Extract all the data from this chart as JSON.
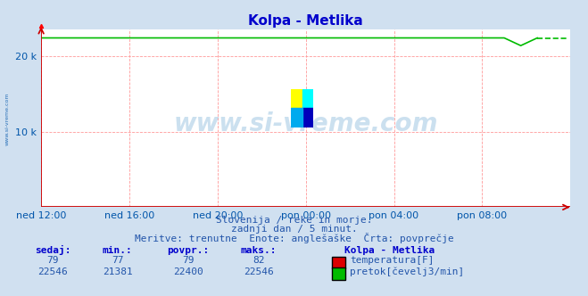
{
  "title": "Kolpa - Metlika",
  "title_color": "#0000cc",
  "bg_color": "#d0e0f0",
  "plot_bg_color": "#ffffff",
  "grid_color": "#ff9999",
  "axis_color": "#cc0000",
  "tick_color": "#0055aa",
  "xlabel_labels": [
    "ned 12:00",
    "ned 16:00",
    "ned 20:00",
    "pon 00:00",
    "pon 04:00",
    "pon 08:00"
  ],
  "ytick_labels": [
    "10 k",
    "20 k"
  ],
  "ytick_vals": [
    10000,
    20000
  ],
  "ylim": [
    0,
    23500
  ],
  "xlim": [
    0,
    288
  ],
  "n_points": 288,
  "flow_value_main": 22400,
  "flow_min": 21381,
  "flow_max": 22546,
  "flow_dip_start": 252,
  "flow_dip_end": 270,
  "flow_dip_value": 21381,
  "temp_value": 79,
  "temp_color": "#dd0000",
  "flow_color": "#00bb00",
  "watermark": "www.si-vreme.com",
  "watermark_color": "#5599cc",
  "watermark_alpha": 0.3,
  "side_text": "www.si-vreme.com",
  "subtitle1": "Slovenija / reke in morje.",
  "subtitle2": "zadnji dan / 5 minut.",
  "subtitle3": "Meritve: trenutne  Enote: anglešaške  Črta: povprečje",
  "subtitle_color": "#2255aa",
  "table_header_color": "#0000cc",
  "table_value_color": "#2255aa",
  "sedaj_temp": 79,
  "min_temp": 77,
  "povpr_temp": 79,
  "maks_temp": 82,
  "sedaj_flow": 22546,
  "min_flow": 21381,
  "povpr_flow": 22400,
  "maks_flow": 22546,
  "x_tick_pos": [
    0,
    48,
    96,
    144,
    192,
    240
  ]
}
